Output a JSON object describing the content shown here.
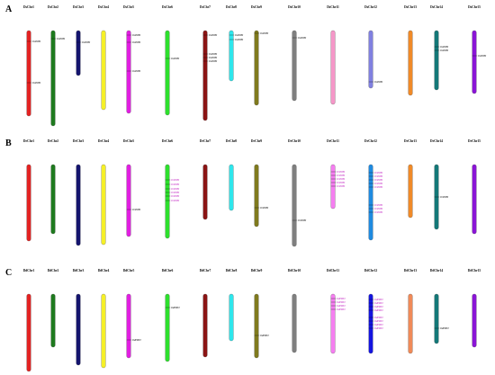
{
  "panels": [
    {
      "letter": "A",
      "chromosomes": [
        {
          "label": "DsChr1",
          "color": "#e32222",
          "genes": [
            "DsPMEI",
            "DsPMEI"
          ]
        },
        {
          "label": "DsChr2",
          "color": "#1e7a1e",
          "genes": [
            "DsPMEI"
          ]
        },
        {
          "label": "DsChr3",
          "color": "#14146e",
          "genes": [
            "DsPMEI"
          ]
        },
        {
          "label": "DsChr4",
          "color": "#f5f028",
          "genes": []
        },
        {
          "label": "DsChr5",
          "color": "#e11fe1",
          "genes": [
            "DsPMEI",
            "DsPMEI",
            "DsPMEI"
          ]
        },
        {
          "label": "DsChr6",
          "color": "#2ee02e",
          "genes": [
            "DsPMEI"
          ]
        },
        {
          "label": "DsChr7",
          "color": "#8a1414",
          "genes": [
            "DsPMEI",
            "DsPMEI",
            "DsPMEI",
            "DsPMEI"
          ]
        },
        {
          "label": "DsChr8",
          "color": "#2ee6ec",
          "genes": [
            "DsPMEI",
            "DsPMEI"
          ]
        },
        {
          "label": "DsChr9",
          "color": "#7f7a1e",
          "genes": [
            "DsPMEI"
          ]
        },
        {
          "label": "DsChr10",
          "color": "#7f7f7f",
          "genes": [
            "DsPMEI"
          ]
        },
        {
          "label": "DsChr11",
          "color": "#f597c8",
          "genes": []
        },
        {
          "label": "DsChr12",
          "color": "#8080e0",
          "genes": [
            "DsPMEI"
          ]
        },
        {
          "label": "DsChr13",
          "color": "#f08a28",
          "genes": []
        },
        {
          "label": "DsChr14",
          "color": "#147878",
          "genes": [
            "DsPMEI",
            "DsPMEI"
          ]
        },
        {
          "label": "DsChr15",
          "color": "#8a14d6",
          "genes": [
            "DsPMEI"
          ]
        }
      ]
    },
    {
      "letter": "B",
      "chromosomes": [
        {
          "label": "DrChr1",
          "color": "#e32222",
          "genes": []
        },
        {
          "label": "DrChr2",
          "color": "#1e7a1e",
          "genes": []
        },
        {
          "label": "DrChr3",
          "color": "#14146e",
          "genes": []
        },
        {
          "label": "DrChr4",
          "color": "#f5f028",
          "genes": []
        },
        {
          "label": "DrChr5",
          "color": "#e11fe1",
          "genes": [
            "DrPMEI"
          ]
        },
        {
          "label": "DrChr6",
          "color": "#2ee02e",
          "genes": [
            "DrPMEI",
            "DrPMEI",
            "DrPMEI",
            "DrPMEI",
            "DrPMEI",
            "DrPMEI"
          ]
        },
        {
          "label": "DrChr7",
          "color": "#8a1414",
          "genes": []
        },
        {
          "label": "DrChr8",
          "color": "#2ee6ec",
          "genes": []
        },
        {
          "label": "DrChr9",
          "color": "#7f7a1e",
          "genes": [
            "DrPMEI"
          ]
        },
        {
          "label": "DrChr10",
          "color": "#7f7f7f",
          "genes": [
            "DrPMEI"
          ]
        },
        {
          "label": "DrChr11",
          "color": "#f57ef0",
          "genes": [
            "DrPMEI",
            "DrPMEI",
            "DrPMEI",
            "DrPMEI",
            "DrPMEI"
          ]
        },
        {
          "label": "DrChr12",
          "color": "#1e8ae0",
          "genes": [
            "DrPMEI",
            "DrPMEI",
            "DrPMEI",
            "DrPMEI",
            "DrPMEI",
            "DrPMEI",
            "DrPMEI",
            "DrPMEI"
          ]
        },
        {
          "label": "DrChr13",
          "color": "#f08a28",
          "genes": []
        },
        {
          "label": "DrChr14",
          "color": "#147878",
          "genes": [
            "DrPMEI"
          ]
        },
        {
          "label": "DrChr15",
          "color": "#8a14d6",
          "genes": []
        }
      ]
    },
    {
      "letter": "C",
      "chromosomes": [
        {
          "label": "DdChr1",
          "color": "#e32222",
          "genes": []
        },
        {
          "label": "DdChr2",
          "color": "#1e7a1e",
          "genes": []
        },
        {
          "label": "DdChr3",
          "color": "#14146e",
          "genes": []
        },
        {
          "label": "DdChr4",
          "color": "#f5f028",
          "genes": []
        },
        {
          "label": "DdChr5",
          "color": "#e11fe1",
          "genes": [
            "DdPMEI"
          ]
        },
        {
          "label": "DdChr6",
          "color": "#2ee02e",
          "genes": [
            "DdPMEI"
          ]
        },
        {
          "label": "DdChr7",
          "color": "#8a1414",
          "genes": []
        },
        {
          "label": "DdChr8",
          "color": "#2ee6ec",
          "genes": []
        },
        {
          "label": "DdChr9",
          "color": "#7f7a1e",
          "genes": [
            "DdPMEI"
          ]
        },
        {
          "label": "DdChr10",
          "color": "#7f7f7f",
          "genes": []
        },
        {
          "label": "DdChr11",
          "color": "#f57ef0",
          "genes": [
            "DdPMEI",
            "DdPMEI",
            "DdPMEI",
            "DdPMEI"
          ]
        },
        {
          "label": "DdChr12",
          "color": "#1414e0",
          "genes": [
            "DdPMEI",
            "DdPMEI",
            "DdPMEI",
            "DdPMEI",
            "DdPMEI",
            "DdPMEI",
            "DdPMEI",
            "DdPMEI"
          ]
        },
        {
          "label": "DdChr13",
          "color": "#f08a58",
          "genes": []
        },
        {
          "label": "DdChr14",
          "color": "#147878",
          "genes": [
            "DdPMEI"
          ]
        },
        {
          "label": "DdChr15",
          "color": "#8a14d6",
          "genes": []
        }
      ]
    }
  ],
  "colors": {
    "highlight_gene": "#c01ec0",
    "plain_gene": "#000000"
  }
}
